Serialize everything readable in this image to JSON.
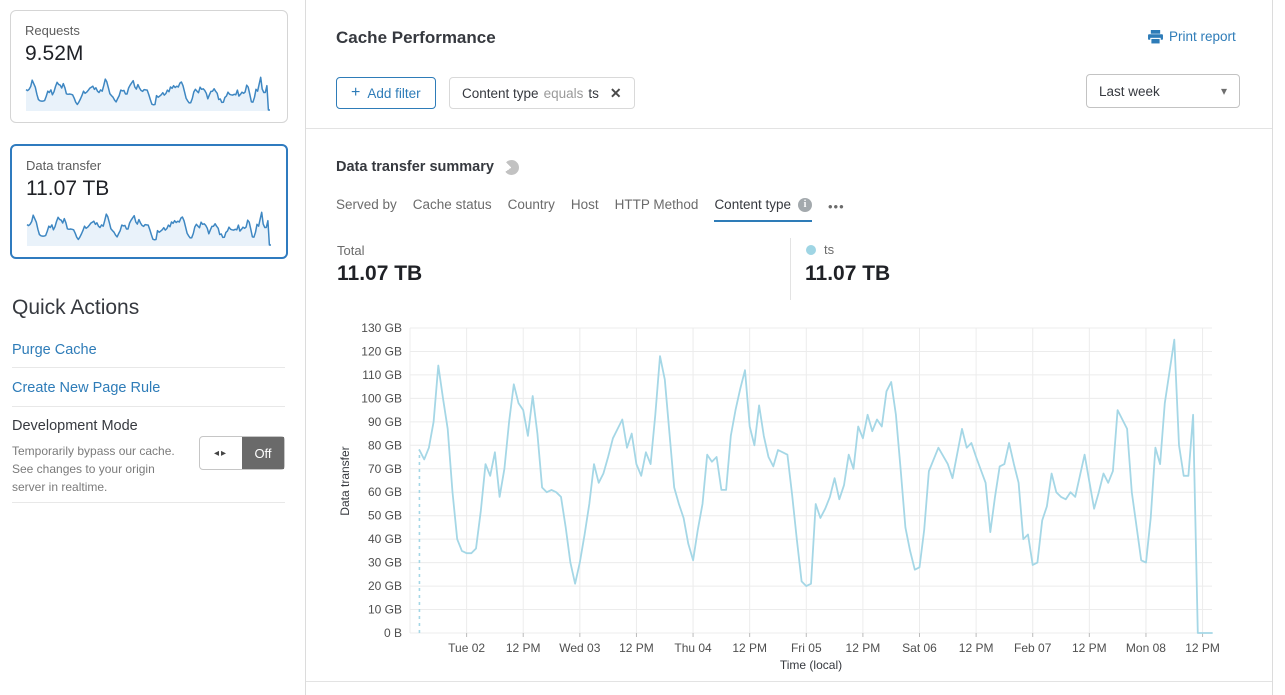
{
  "sidebar": {
    "cards": [
      {
        "label": "Requests",
        "value": "9.52M"
      },
      {
        "label": "Data transfer",
        "value": "11.07 TB"
      }
    ],
    "quick_actions_title": "Quick Actions",
    "links": [
      "Purge Cache",
      "Create New Page Rule"
    ],
    "development_mode": {
      "title": "Development Mode",
      "description": "Temporarily bypass our cache. See changes to your origin server in realtime.",
      "toggle_arrows": "◂▸",
      "toggle_label": "Off"
    }
  },
  "header": {
    "title": "Cache Performance",
    "print_label": "Print report"
  },
  "filter_bar": {
    "add_filter_icon": "+",
    "add_filter_label": "Add filter",
    "chip": {
      "field": "Content type",
      "operator": "equals",
      "value": "ts",
      "close_icon": "✕"
    },
    "time_range_value": "Last week",
    "caret_icon": "▾"
  },
  "summary": {
    "title": "Data transfer summary",
    "tabs": [
      "Served by",
      "Cache status",
      "Country",
      "Host",
      "HTTP Method",
      "Content type"
    ],
    "active_tab": "Content type",
    "more_icon": "•••",
    "total_label": "Total",
    "total_value": "11.07 TB",
    "legend": {
      "name": "ts",
      "value": "11.07 TB",
      "color": "#9fd5e4"
    }
  },
  "chart_data": {
    "type": "line",
    "title": "Data transfer summary",
    "xlabel": "Time (local)",
    "ylabel": "Data transfer",
    "unit": "GB",
    "ylim": [
      0,
      130
    ],
    "ytick_labels": [
      "0 B",
      "10 GB",
      "20 GB",
      "30 GB",
      "40 GB",
      "50 GB",
      "60 GB",
      "70 GB",
      "80 GB",
      "90 GB",
      "100 GB",
      "110 GB",
      "120 GB",
      "130 GB"
    ],
    "x_range_hours": [
      0,
      170
    ],
    "xtick_hours": [
      12,
      24,
      36,
      48,
      60,
      72,
      84,
      96,
      108,
      120,
      132,
      144,
      156,
      168
    ],
    "xtick_labels": [
      "Tue 02",
      "12 PM",
      "Wed 03",
      "12 PM",
      "Thu 04",
      "12 PM",
      "Fri 05",
      "12 PM",
      "Sat 06",
      "12 PM",
      "Feb 07",
      "12 PM",
      "Mon 08",
      "12 PM"
    ],
    "grid": true,
    "line_color": "#a5d7e6",
    "grid_color": "#ececec",
    "axis_text_color": "#4f4f4f",
    "start_boundary": {
      "hour": 2,
      "style": "dashed"
    },
    "series": [
      {
        "name": "ts",
        "points": [
          [
            2,
            78
          ],
          [
            3,
            74
          ],
          [
            4,
            79
          ],
          [
            5,
            90
          ],
          [
            6,
            114
          ],
          [
            7,
            100
          ],
          [
            8,
            87
          ],
          [
            9,
            60
          ],
          [
            10,
            40
          ],
          [
            11,
            35
          ],
          [
            12,
            34
          ],
          [
            13,
            34
          ],
          [
            14,
            36
          ],
          [
            15,
            52
          ],
          [
            16,
            72
          ],
          [
            17,
            67
          ],
          [
            18,
            77
          ],
          [
            19,
            58
          ],
          [
            20,
            70
          ],
          [
            21,
            90
          ],
          [
            22,
            106
          ],
          [
            23,
            98
          ],
          [
            24,
            95
          ],
          [
            25,
            84
          ],
          [
            26,
            101
          ],
          [
            27,
            85
          ],
          [
            28,
            62
          ],
          [
            29,
            60
          ],
          [
            30,
            61
          ],
          [
            31,
            60
          ],
          [
            32,
            58
          ],
          [
            33,
            45
          ],
          [
            34,
            30
          ],
          [
            35,
            21
          ],
          [
            36,
            30
          ],
          [
            37,
            42
          ],
          [
            38,
            55
          ],
          [
            39,
            72
          ],
          [
            40,
            64
          ],
          [
            41,
            68
          ],
          [
            42,
            75
          ],
          [
            43,
            83
          ],
          [
            44,
            87
          ],
          [
            45,
            91
          ],
          [
            46,
            79
          ],
          [
            47,
            85
          ],
          [
            48,
            72
          ],
          [
            49,
            67
          ],
          [
            50,
            77
          ],
          [
            51,
            72
          ],
          [
            52,
            93
          ],
          [
            53,
            118
          ],
          [
            54,
            108
          ],
          [
            55,
            85
          ],
          [
            56,
            62
          ],
          [
            57,
            55
          ],
          [
            58,
            49
          ],
          [
            59,
            38
          ],
          [
            60,
            31
          ],
          [
            61,
            44
          ],
          [
            62,
            55
          ],
          [
            63,
            76
          ],
          [
            64,
            73
          ],
          [
            65,
            75
          ],
          [
            66,
            61
          ],
          [
            67,
            61
          ],
          [
            68,
            84
          ],
          [
            69,
            95
          ],
          [
            70,
            104
          ],
          [
            71,
            112
          ],
          [
            72,
            88
          ],
          [
            73,
            80
          ],
          [
            74,
            97
          ],
          [
            75,
            84
          ],
          [
            76,
            75
          ],
          [
            77,
            71
          ],
          [
            78,
            78
          ],
          [
            79,
            77
          ],
          [
            80,
            76
          ],
          [
            81,
            59
          ],
          [
            82,
            40
          ],
          [
            83,
            22
          ],
          [
            84,
            20
          ],
          [
            85,
            21
          ],
          [
            86,
            55
          ],
          [
            87,
            49
          ],
          [
            88,
            53
          ],
          [
            89,
            58
          ],
          [
            90,
            66
          ],
          [
            91,
            57
          ],
          [
            92,
            63
          ],
          [
            93,
            76
          ],
          [
            94,
            70
          ],
          [
            95,
            88
          ],
          [
            96,
            83
          ],
          [
            97,
            93
          ],
          [
            98,
            86
          ],
          [
            99,
            91
          ],
          [
            100,
            88
          ],
          [
            101,
            103
          ],
          [
            102,
            107
          ],
          [
            103,
            93
          ],
          [
            104,
            70
          ],
          [
            105,
            45
          ],
          [
            106,
            35
          ],
          [
            107,
            27
          ],
          [
            108,
            28
          ],
          [
            109,
            44
          ],
          [
            110,
            69
          ],
          [
            112,
            79
          ],
          [
            114,
            72
          ],
          [
            115,
            66
          ],
          [
            117,
            87
          ],
          [
            118,
            79
          ],
          [
            119,
            81
          ],
          [
            120,
            75
          ],
          [
            122,
            64
          ],
          [
            123,
            43
          ],
          [
            124,
            58
          ],
          [
            125,
            71
          ],
          [
            126,
            72
          ],
          [
            127,
            81
          ],
          [
            128,
            72
          ],
          [
            129,
            64
          ],
          [
            130,
            40
          ],
          [
            131,
            42
          ],
          [
            132,
            29
          ],
          [
            133,
            30
          ],
          [
            134,
            48
          ],
          [
            135,
            54
          ],
          [
            136,
            68
          ],
          [
            137,
            60
          ],
          [
            138,
            58
          ],
          [
            139,
            57
          ],
          [
            140,
            60
          ],
          [
            141,
            58
          ],
          [
            143,
            76
          ],
          [
            145,
            53
          ],
          [
            146,
            60
          ],
          [
            147,
            68
          ],
          [
            148,
            64
          ],
          [
            149,
            69
          ],
          [
            150,
            95
          ],
          [
            152,
            87
          ],
          [
            153,
            60
          ],
          [
            155,
            31
          ],
          [
            156,
            30
          ],
          [
            157,
            49
          ],
          [
            158,
            79
          ],
          [
            159,
            72
          ],
          [
            160,
            98
          ],
          [
            162,
            125
          ],
          [
            163,
            80
          ],
          [
            164,
            67
          ],
          [
            165,
            67
          ],
          [
            166,
            93
          ],
          [
            167,
            0
          ],
          [
            170,
            0
          ]
        ]
      }
    ]
  },
  "sparkline": {
    "stroke": "#3e87c2",
    "fill": "#e9f2fa"
  }
}
